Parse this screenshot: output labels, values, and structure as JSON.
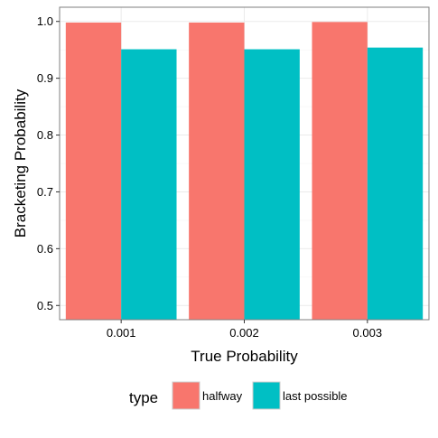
{
  "chart_data": {
    "type": "bar",
    "categories": [
      "0.001",
      "0.002",
      "0.003"
    ],
    "series": [
      {
        "name": "halfway",
        "color": "#F8766D",
        "values": [
          0.998,
          0.998,
          0.999
        ]
      },
      {
        "name": "last possible",
        "color": "#00BFC4",
        "values": [
          0.951,
          0.951,
          0.954
        ]
      }
    ],
    "xlabel": "True Probability",
    "ylabel": "Bracketing Probability",
    "ylim": [
      0.475,
      1.025
    ],
    "yticks": [
      "0.5",
      "0.6",
      "0.7",
      "0.8",
      "0.9",
      "1.0"
    ],
    "ytick_values": [
      0.5,
      0.6,
      0.7,
      0.8,
      0.9,
      1.0
    ],
    "legend_title": "type",
    "legend_position": "bottom",
    "grid": true,
    "colors": {
      "panel_border": "#7f7f7f",
      "grid_major": "#ebebeb",
      "grid_minor": "#f5f5f5"
    }
  }
}
